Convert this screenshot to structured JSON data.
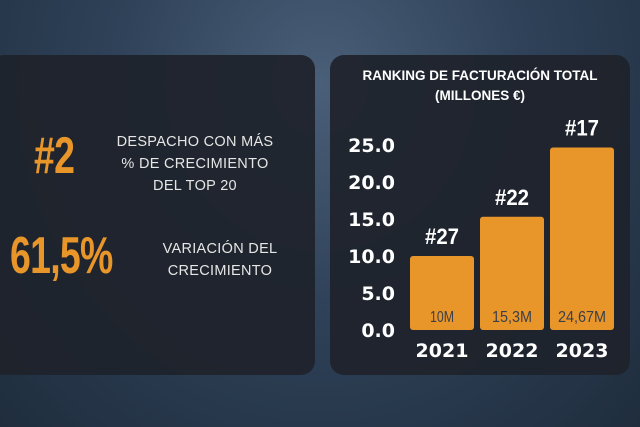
{
  "stats": [
    {
      "value": "#2",
      "label_lines": [
        "DESPACHO CON MÁS",
        "% DE CRECIMIENTO",
        "DEL TOP 20"
      ]
    },
    {
      "value": "61,5%",
      "label_lines": [
        "VARIACIÓN DEL",
        "CRECIMIENTO"
      ]
    }
  ],
  "colors": {
    "bar": "#e8962a",
    "panel": "#1e222b",
    "accent": "#e8962a"
  },
  "chart_data": {
    "type": "bar",
    "title": "RANKING DE FACTURACIÓN TOTAL",
    "subtitle": "(MILLONES €)",
    "categories": [
      "2021",
      "2022",
      "2023"
    ],
    "values": [
      10,
      15.3,
      24.67
    ],
    "value_labels": [
      "10M",
      "15,3M",
      "24,67M"
    ],
    "rank_labels": [
      "#27",
      "#22",
      "#17"
    ],
    "yticks": [
      "0.0",
      "5.0",
      "10.0",
      "15.0",
      "20.0",
      "25.0"
    ],
    "ylim": [
      0,
      25
    ],
    "grid": false
  }
}
